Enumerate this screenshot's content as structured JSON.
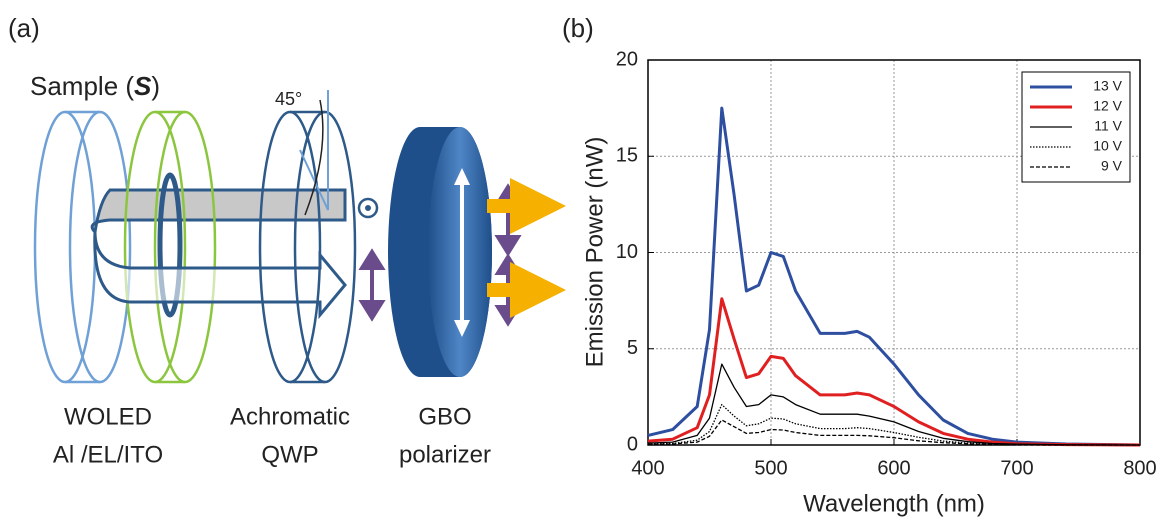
{
  "diagram": {
    "panel_label": "(a)",
    "sample": {
      "prefix": "Sample (",
      "symbol": "S",
      "suffix": ")"
    },
    "angle": "45°",
    "woled": [
      "WOLED",
      "Al /EL/ITO"
    ],
    "qwp": [
      "Achromatic",
      "QWP"
    ],
    "polarizer": [
      "GBO",
      "polarizer"
    ]
  },
  "chart_data": {
    "type": "line",
    "panel_label": "(b)",
    "x_label": "Wavelength (nm)",
    "y_label": "Emission Power (nW)",
    "xlim": [
      400,
      800
    ],
    "xticks": [
      400,
      500,
      600,
      700,
      800
    ],
    "ylim": [
      0,
      20
    ],
    "yticks": [
      0,
      5,
      10,
      15,
      20
    ],
    "grid": true,
    "legend": "upper right",
    "x": [
      400,
      420,
      440,
      450,
      460,
      470,
      480,
      490,
      500,
      510,
      520,
      540,
      560,
      570,
      580,
      600,
      620,
      640,
      660,
      680,
      700,
      740,
      800
    ],
    "series": [
      {
        "name": "13 V",
        "color": "#2e4fa0",
        "style": "bold",
        "values": [
          0.5,
          0.8,
          2.0,
          6.0,
          17.5,
          13.0,
          8.0,
          8.3,
          10.0,
          9.8,
          8.0,
          5.8,
          5.8,
          5.9,
          5.6,
          4.2,
          2.6,
          1.3,
          0.6,
          0.3,
          0.15,
          0.05,
          0
        ]
      },
      {
        "name": "12 V",
        "color": "#e02020",
        "style": "bold",
        "values": [
          0.2,
          0.3,
          0.9,
          2.6,
          7.6,
          5.5,
          3.5,
          3.7,
          4.6,
          4.5,
          3.6,
          2.6,
          2.6,
          2.7,
          2.6,
          2.0,
          1.2,
          0.6,
          0.3,
          0.15,
          0.07,
          0.02,
          0
        ]
      },
      {
        "name": "11 V",
        "color": "#000000",
        "style": "solid",
        "values": [
          0.1,
          0.15,
          0.5,
          1.4,
          4.2,
          3.0,
          2.0,
          2.1,
          2.6,
          2.5,
          2.1,
          1.6,
          1.6,
          1.6,
          1.5,
          1.2,
          0.7,
          0.35,
          0.17,
          0.08,
          0.04,
          0.01,
          0
        ]
      },
      {
        "name": "10 V",
        "color": "#000000",
        "style": "dotted",
        "values": [
          0.05,
          0.08,
          0.25,
          0.7,
          2.1,
          1.5,
          1.0,
          1.1,
          1.4,
          1.35,
          1.1,
          0.85,
          0.85,
          0.9,
          0.85,
          0.65,
          0.4,
          0.2,
          0.1,
          0.05,
          0.02,
          0,
          0
        ]
      },
      {
        "name": "9 V",
        "color": "#000000",
        "style": "dashed",
        "values": [
          0.03,
          0.05,
          0.15,
          0.45,
          1.3,
          0.95,
          0.6,
          0.65,
          0.8,
          0.78,
          0.65,
          0.5,
          0.5,
          0.5,
          0.48,
          0.38,
          0.22,
          0.12,
          0.06,
          0.03,
          0.01,
          0,
          0
        ]
      }
    ]
  }
}
